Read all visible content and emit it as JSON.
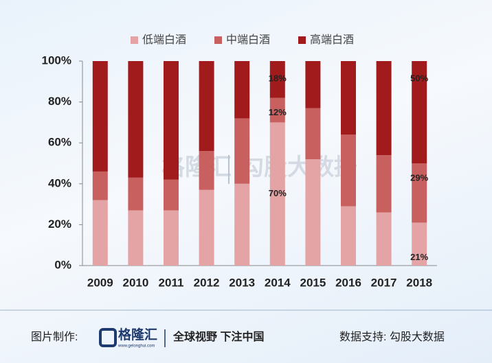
{
  "chart_data": {
    "type": "stacked_bar",
    "categories": [
      "2009",
      "2010",
      "2011",
      "2012",
      "2013",
      "2014",
      "2015",
      "2016",
      "2017",
      "2018"
    ],
    "series": [
      {
        "name": "低端白酒",
        "color": "#e4a3a5",
        "values": [
          32,
          27,
          27,
          37,
          40,
          70,
          52,
          29,
          26,
          21
        ],
        "value_labels": [
          null,
          null,
          null,
          null,
          null,
          "70%",
          null,
          null,
          null,
          "21%"
        ]
      },
      {
        "name": "中端白酒",
        "color": "#c8605f",
        "values": [
          14,
          16,
          15,
          19,
          32,
          12,
          25,
          35,
          28,
          29
        ],
        "value_labels": [
          null,
          null,
          null,
          null,
          null,
          "12%",
          null,
          null,
          null,
          "29%"
        ]
      },
      {
        "name": "高端白酒",
        "color": "#a11a1c",
        "values": [
          54,
          57,
          58,
          44,
          28,
          18,
          23,
          36,
          46,
          50
        ],
        "value_labels": [
          null,
          null,
          null,
          null,
          null,
          "18%",
          null,
          null,
          null,
          "50%"
        ]
      }
    ],
    "ylim": [
      0,
      100
    ],
    "yticks": [
      {
        "value": 0,
        "label": "0%"
      },
      {
        "value": 20,
        "label": "20%"
      },
      {
        "value": 40,
        "label": "40%"
      },
      {
        "value": 60,
        "label": "60%"
      },
      {
        "value": 80,
        "label": "80%"
      },
      {
        "value": 100,
        "label": "100%"
      }
    ],
    "legend": "top"
  },
  "watermark": {
    "left": "格隆汇",
    "right": "勾股大数据"
  },
  "footer": {
    "made_by": "图片制作:",
    "logo": "格隆汇",
    "logo_url": "www.gelonghui.com",
    "slogan": "全球视野 下注中国",
    "data_support": "数据支持: 勾股大数据"
  }
}
